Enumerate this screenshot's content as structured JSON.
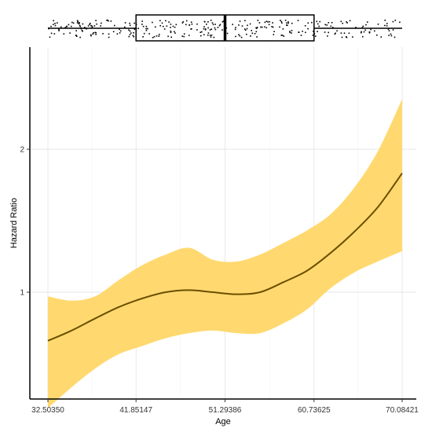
{
  "chart_data": {
    "type": "line",
    "xlabel": "Age",
    "ylabel": "Hazard Ratio",
    "x_ticks": [
      "32.50350",
      "41.85147",
      "51.29386",
      "60.73625",
      "70.08421"
    ],
    "y_ticks": [
      "1",
      "2"
    ],
    "y_scale": "log",
    "xlim": [
      32.5035,
      70.08421
    ],
    "ylim": [
      0.5,
      2.6
    ],
    "grid": true,
    "colors": {
      "line": "#6b4f00",
      "band": "#ffd970",
      "box": "#000000",
      "grid": "#dedede"
    },
    "series": [
      {
        "x": [
          32.5,
          35.0,
          37.5,
          40.0,
          42.5,
          45.0,
          47.5,
          50.0,
          52.5,
          55.0,
          57.5,
          60.0,
          62.5,
          65.0,
          67.5,
          70.08
        ],
        "y": [
          0.79,
          0.83,
          0.88,
          0.93,
          0.97,
          1.0,
          1.01,
          1.0,
          0.99,
          1.0,
          1.05,
          1.11,
          1.21,
          1.34,
          1.51,
          1.78
        ],
        "lower": [
          0.57,
          0.63,
          0.69,
          0.74,
          0.77,
          0.8,
          0.82,
          0.83,
          0.82,
          0.82,
          0.86,
          0.92,
          1.02,
          1.1,
          1.16,
          1.22
        ],
        "upper": [
          0.98,
          0.96,
          0.98,
          1.06,
          1.14,
          1.2,
          1.24,
          1.17,
          1.16,
          1.2,
          1.27,
          1.35,
          1.46,
          1.66,
          1.98,
          2.55
        ]
      }
    ],
    "boxplot": {
      "min": 32.5035,
      "q1": 41.85147,
      "median": 51.29386,
      "q3": 60.73625,
      "max": 70.08421
    }
  }
}
